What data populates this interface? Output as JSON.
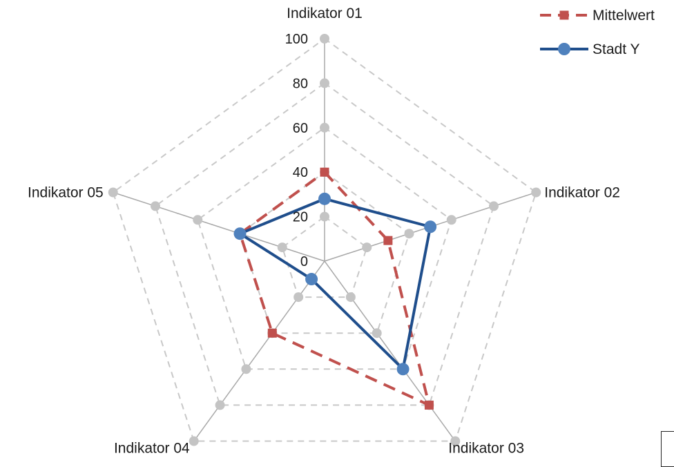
{
  "chart_data": {
    "type": "radar",
    "categories": [
      "Indikator 01",
      "Indikator 02",
      "Indikator 03",
      "Indikator 04",
      "Indikator 05"
    ],
    "ticks": [
      0,
      20,
      40,
      60,
      80,
      100
    ],
    "rlim": [
      0,
      100
    ],
    "grid": true,
    "legend_position": "top-right",
    "series": [
      {
        "name": "Mittelwert",
        "values": [
          40,
          30,
          80,
          40,
          40
        ],
        "color": "#c0504d",
        "line_style": "dashed",
        "marker": "square"
      },
      {
        "name": "Stadt Y",
        "values": [
          28,
          50,
          60,
          10,
          40
        ],
        "color": "#1f4e8c",
        "marker_color": "#4f81bd",
        "line_style": "solid",
        "marker": "circle"
      }
    ],
    "grid_color": "#c8c8c8",
    "axis_color": "#a8a8a8"
  }
}
